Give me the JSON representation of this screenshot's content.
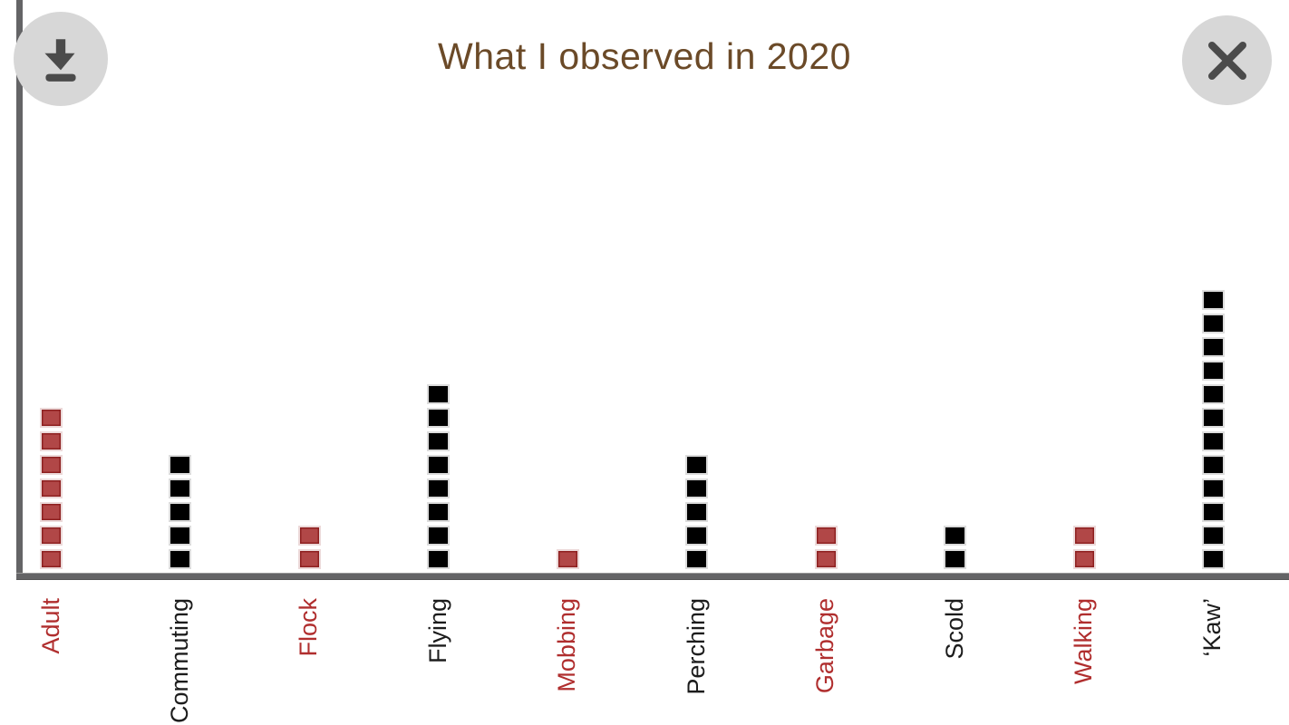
{
  "header": {
    "title": "What I observed in 2020"
  },
  "toolbar": {
    "icons": {
      "download": "arrow-down-to-bar",
      "close": "x-cross"
    }
  },
  "colors": {
    "title": "#6b4a28",
    "axis": "#646466",
    "black_fill": "#000000",
    "red_fill": "#b14747",
    "red_edge": "#8e2020",
    "square_border": "#dcdcdc",
    "red_label": "#b02e2e",
    "black_label": "#1c1c1c",
    "button_bg": "#d7d7d7",
    "button_icon": "#4b4b4b"
  },
  "chart_data": {
    "type": "bar",
    "subtype": "waffle-stack (1 square = 1 count)",
    "title": "What I observed in 2020",
    "categories": [
      "Adult",
      "Commuting",
      "Flock",
      "Flying",
      "Mobbing",
      "Perching",
      "Garbage",
      "Scold",
      "Walking",
      "‘Kaw’"
    ],
    "values": [
      7,
      5,
      2,
      8,
      1,
      5,
      2,
      2,
      2,
      12
    ],
    "series_colors": [
      "red",
      "black",
      "red",
      "black",
      "red",
      "black",
      "red",
      "black",
      "red",
      "black"
    ],
    "xlabel": "",
    "ylabel": "",
    "ylim": [
      0,
      12
    ],
    "grid": false,
    "legend": false,
    "tick_label_rotation": 90
  }
}
